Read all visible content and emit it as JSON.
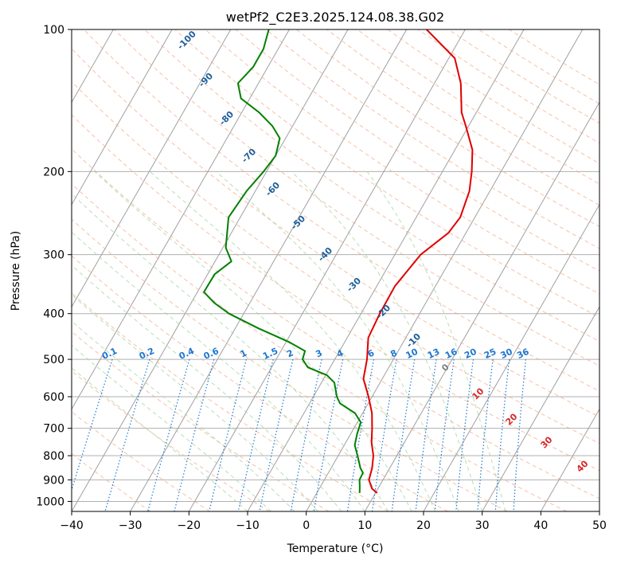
{
  "chart_data": {
    "type": "line",
    "title": "wetPf2_C2E3.2025.124.08.38.G02",
    "xlabel": "Temperature (°C)",
    "ylabel": "Pressure (hPa)",
    "xlim": [
      -40,
      50
    ],
    "ylim": [
      1050,
      100
    ],
    "y_scale": "log",
    "grid": true,
    "x_ticks": [
      "−40",
      "−30",
      "−20",
      "−10",
      "0",
      "10",
      "20",
      "30",
      "40",
      "50"
    ],
    "x_tick_values": [
      -40,
      -30,
      -20,
      -10,
      0,
      10,
      20,
      30,
      40,
      50
    ],
    "y_ticks": [
      "100",
      "200",
      "300",
      "400",
      "500",
      "600",
      "700",
      "800",
      "900",
      "1000"
    ],
    "y_tick_values": [
      100,
      200,
      300,
      400,
      500,
      600,
      700,
      800,
      900,
      1000
    ],
    "colors": {
      "temperature": "#e00000",
      "dewpoint": "#008000",
      "isotherm": "#a0a0a0",
      "dry_adiabat": "#f4a582",
      "moist_adiabat": "#9fd49f",
      "mixing_ratio": "#1f77d0",
      "freezing_label": "#808080",
      "dry_adiabat_label": "#1f5f9a",
      "pos_temp_label": "#d62728"
    },
    "series": [
      {
        "line": "temperature",
        "points": [
          [
            960,
            10.3
          ],
          [
            940,
            9.0
          ],
          [
            900,
            7.6
          ],
          [
            850,
            7.0
          ],
          [
            800,
            6.0
          ],
          [
            750,
            4.4
          ],
          [
            700,
            3.1
          ],
          [
            650,
            1.6
          ],
          [
            600,
            -0.6
          ],
          [
            550,
            -3.2
          ],
          [
            500,
            -4.5
          ],
          [
            450,
            -6.4
          ],
          [
            400,
            -6.8
          ],
          [
            350,
            -6.9
          ],
          [
            300,
            -5.6
          ],
          [
            270,
            -3.0
          ],
          [
            250,
            -2.5
          ],
          [
            220,
            -3.5
          ],
          [
            200,
            -5.0
          ],
          [
            180,
            -7.0
          ],
          [
            160,
            -10.5
          ],
          [
            150,
            -12.5
          ],
          [
            130,
            -15.5
          ],
          [
            115,
            -19.0
          ],
          [
            100,
            -26.6
          ]
        ]
      },
      {
        "line": "dewpoint",
        "points": [
          [
            960,
            7.3
          ],
          [
            930,
            6.7
          ],
          [
            900,
            6.0
          ],
          [
            870,
            5.9
          ],
          [
            850,
            5.0
          ],
          [
            800,
            3.3
          ],
          [
            760,
            1.8
          ],
          [
            720,
            1.1
          ],
          [
            680,
            0.6
          ],
          [
            650,
            -1.3
          ],
          [
            620,
            -4.8
          ],
          [
            600,
            -6.0
          ],
          [
            560,
            -7.8
          ],
          [
            540,
            -9.8
          ],
          [
            520,
            -13.8
          ],
          [
            500,
            -15.5
          ],
          [
            480,
            -15.9
          ],
          [
            460,
            -19.4
          ],
          [
            430,
            -26.0
          ],
          [
            400,
            -32.5
          ],
          [
            380,
            -36.0
          ],
          [
            360,
            -38.9
          ],
          [
            330,
            -38.8
          ],
          [
            310,
            -37.2
          ],
          [
            290,
            -39.5
          ],
          [
            250,
            -42.0
          ],
          [
            220,
            -41.5
          ],
          [
            200,
            -40.5
          ],
          [
            185,
            -40.0
          ],
          [
            170,
            -41.0
          ],
          [
            160,
            -43.5
          ],
          [
            150,
            -47.0
          ],
          [
            140,
            -51.5
          ],
          [
            130,
            -53.5
          ],
          [
            120,
            -52.5
          ],
          [
            110,
            -52.5
          ],
          [
            100,
            -53.5
          ]
        ]
      }
    ],
    "dry_adiabat_labels": [
      "-100",
      "-90",
      "-80",
      "-70",
      "-60",
      "-50",
      "-40",
      "-30",
      "-20",
      "-10",
      "0",
      "10",
      "20",
      "30",
      "40"
    ],
    "mixing_ratio_labels": [
      "0.1",
      "0.2",
      "0.4",
      "0.6",
      "1",
      "1.5",
      "2",
      "3",
      "4",
      "6",
      "8",
      "10",
      "13",
      "16",
      "20",
      "25",
      "30",
      "36"
    ],
    "mixing_ratio_values": [
      0.1,
      0.2,
      0.4,
      0.6,
      1,
      1.5,
      2,
      3,
      4,
      6,
      8,
      10,
      13,
      16,
      20,
      25,
      30,
      36
    ]
  }
}
